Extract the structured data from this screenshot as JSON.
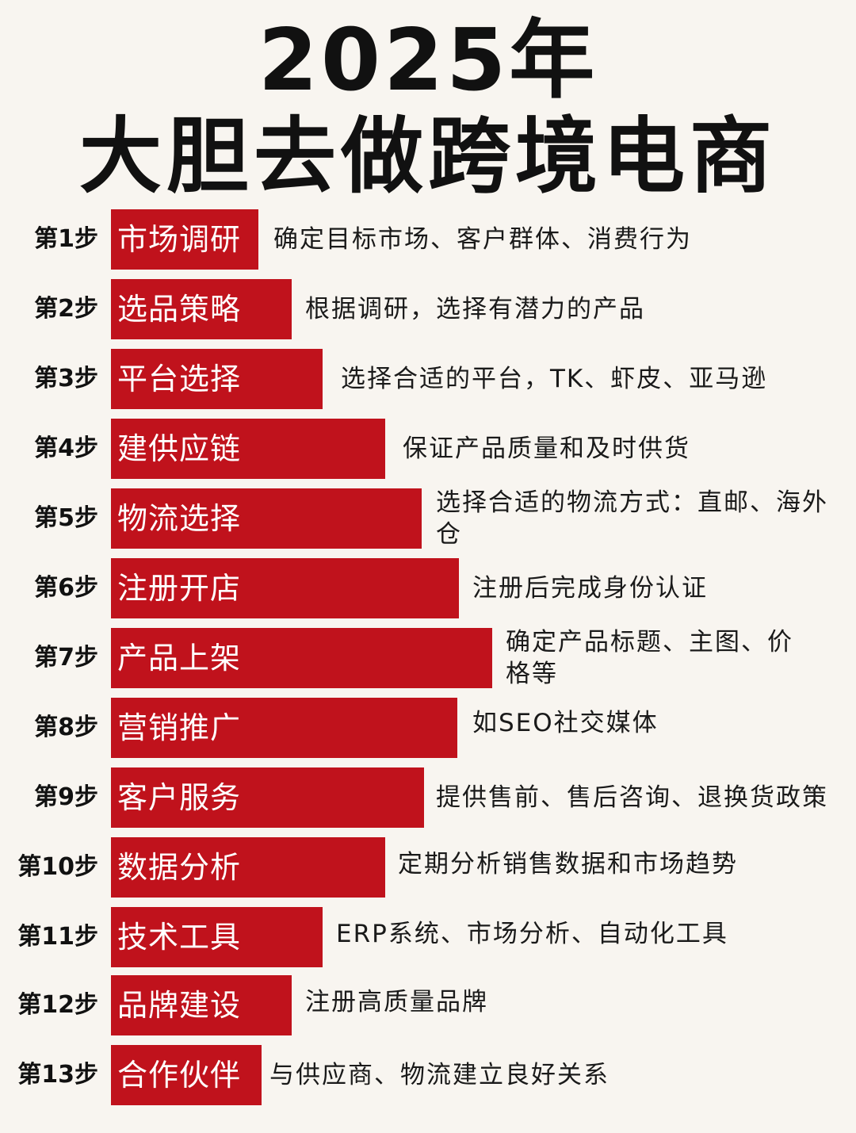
{
  "title": {
    "line1": "2025年",
    "line2": "大胆去做跨境电商"
  },
  "steps": [
    {
      "label": "第1步",
      "name": "市场调研",
      "desc": "确定目标市场、客户群体、消费行为"
    },
    {
      "label": "第2步",
      "name": "选品策略",
      "desc": "根据调研，选择有潜力的产品"
    },
    {
      "label": "第3步",
      "name": "平台选择",
      "desc": "选择合适的平台，TK、虾皮、亚马逊"
    },
    {
      "label": "第4步",
      "name": "建供应链",
      "desc": "保证产品质量和及时供货"
    },
    {
      "label": "第5步",
      "name": "物流选择",
      "desc": "选择合适的物流方式：直邮、海外仓"
    },
    {
      "label": "第6步",
      "name": "注册开店",
      "desc": "注册后完成身份认证"
    },
    {
      "label": "第7步",
      "name": "产品上架",
      "desc": "确定产品标题、主图、价格等"
    },
    {
      "label": "第8步",
      "name": "营销推广",
      "desc": "如SEO社交媒体"
    },
    {
      "label": "第9步",
      "name": "客户服务",
      "desc": "提供售前、售后咨询、退换货政策"
    },
    {
      "label": "第10步",
      "name": "数据分析",
      "desc": "定期分析销售数据和市场趋势"
    },
    {
      "label": "第11步",
      "name": "技术工具",
      "desc": "ERP系统、市场分析、自动化工具"
    },
    {
      "label": "第12步",
      "name": "品牌建设",
      "desc": "注册高质量品牌"
    },
    {
      "label": "第13步",
      "name": "合作伙伴",
      "desc": "与供应商、物流建立良好关系"
    }
  ],
  "colors": {
    "bar": "#c0121c",
    "background": "#f8f5f0"
  }
}
